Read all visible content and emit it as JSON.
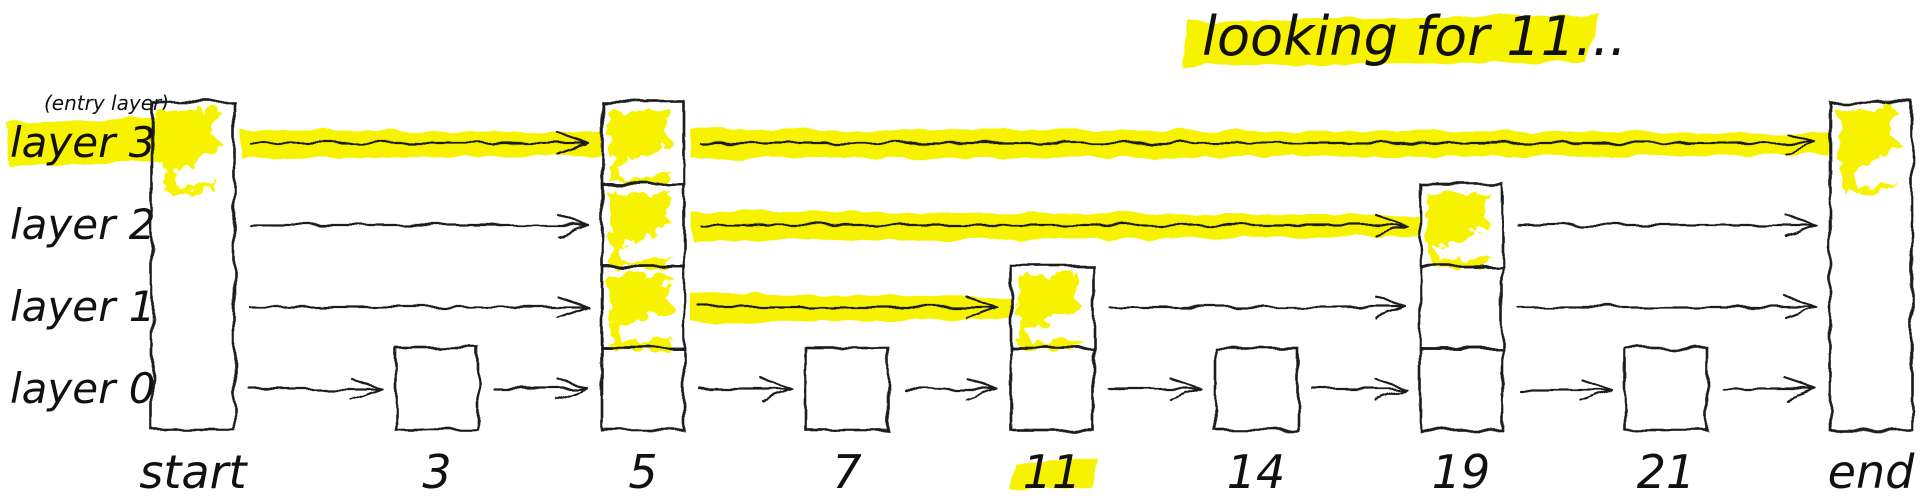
{
  "title": "looking for 11...",
  "entry_note": "(entry layer)",
  "target": "11",
  "colors": {
    "highlight": "#f7f200",
    "target_outline": "#2222cc",
    "stroke": "#1a1a1a"
  },
  "layers": [
    {
      "label": "layer 3",
      "level": 3,
      "highlighted": true
    },
    {
      "label": "layer 2",
      "level": 2,
      "highlighted": false
    },
    {
      "label": "layer 1",
      "level": 1,
      "highlighted": false
    },
    {
      "label": "layer 0",
      "level": 0,
      "highlighted": false
    }
  ],
  "columns": [
    {
      "label": "start",
      "height": 4,
      "sentinel": true,
      "filled_layers": [
        3
      ]
    },
    {
      "label": "3",
      "height": 1,
      "sentinel": false,
      "filled_layers": []
    },
    {
      "label": "5",
      "height": 4,
      "sentinel": false,
      "filled_layers": [
        3,
        2,
        1
      ]
    },
    {
      "label": "7",
      "height": 1,
      "sentinel": false,
      "filled_layers": []
    },
    {
      "label": "11",
      "height": 2,
      "sentinel": false,
      "filled_layers": [
        1
      ],
      "target": true
    },
    {
      "label": "14",
      "height": 1,
      "sentinel": false,
      "filled_layers": []
    },
    {
      "label": "19",
      "height": 3,
      "sentinel": false,
      "filled_layers": [
        2
      ]
    },
    {
      "label": "21",
      "height": 1,
      "sentinel": false,
      "filled_layers": []
    },
    {
      "label": "end",
      "height": 4,
      "sentinel": true,
      "filled_layers": [
        3
      ]
    }
  ],
  "search_path": [
    {
      "layer": 3,
      "from": "start",
      "to": "5"
    },
    {
      "layer": 3,
      "from": "5",
      "to": "end"
    },
    {
      "layer": 2,
      "from": "5",
      "to": "19"
    },
    {
      "layer": 1,
      "from": "5",
      "to": "11"
    }
  ]
}
